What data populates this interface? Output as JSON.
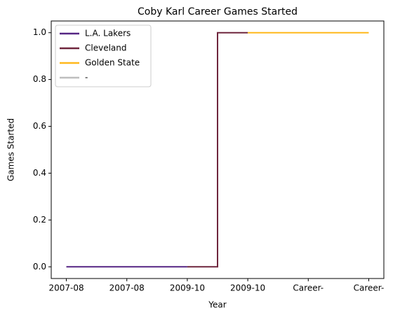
{
  "chart_data": {
    "type": "line",
    "step": "mid",
    "title": "Coby Karl Career Games Started",
    "xlabel": "Year",
    "ylabel": "Games Started",
    "categories": [
      "2007-08",
      "2007-08",
      "2009-10",
      "2009-10",
      "Career-",
      "Career-"
    ],
    "series": [
      {
        "name": "L.A. Lakers",
        "color": "#552583",
        "values": [
          0,
          0,
          0,
          null,
          null,
          null
        ]
      },
      {
        "name": "Cleveland",
        "color": "#6f263d",
        "values": [
          null,
          null,
          0,
          1,
          null,
          null
        ]
      },
      {
        "name": "Golden State",
        "color": "#ffb81c",
        "values": [
          null,
          null,
          null,
          1,
          1,
          1
        ]
      },
      {
        "name": "-",
        "color": "#bebebe",
        "values": [
          null,
          null,
          null,
          null,
          null,
          null
        ]
      }
    ],
    "ylim": [
      -0.05,
      1.05
    ],
    "yticks": [
      {
        "value": 0,
        "label": "0.0"
      },
      {
        "value": 0.2,
        "label": "0.2"
      },
      {
        "value": 0.4,
        "label": "0.4"
      },
      {
        "value": 0.6,
        "label": "0.6"
      },
      {
        "value": 0.8,
        "label": "0.8"
      },
      {
        "value": 1,
        "label": "1.0"
      }
    ],
    "legend": "upper left",
    "grid": false
  }
}
